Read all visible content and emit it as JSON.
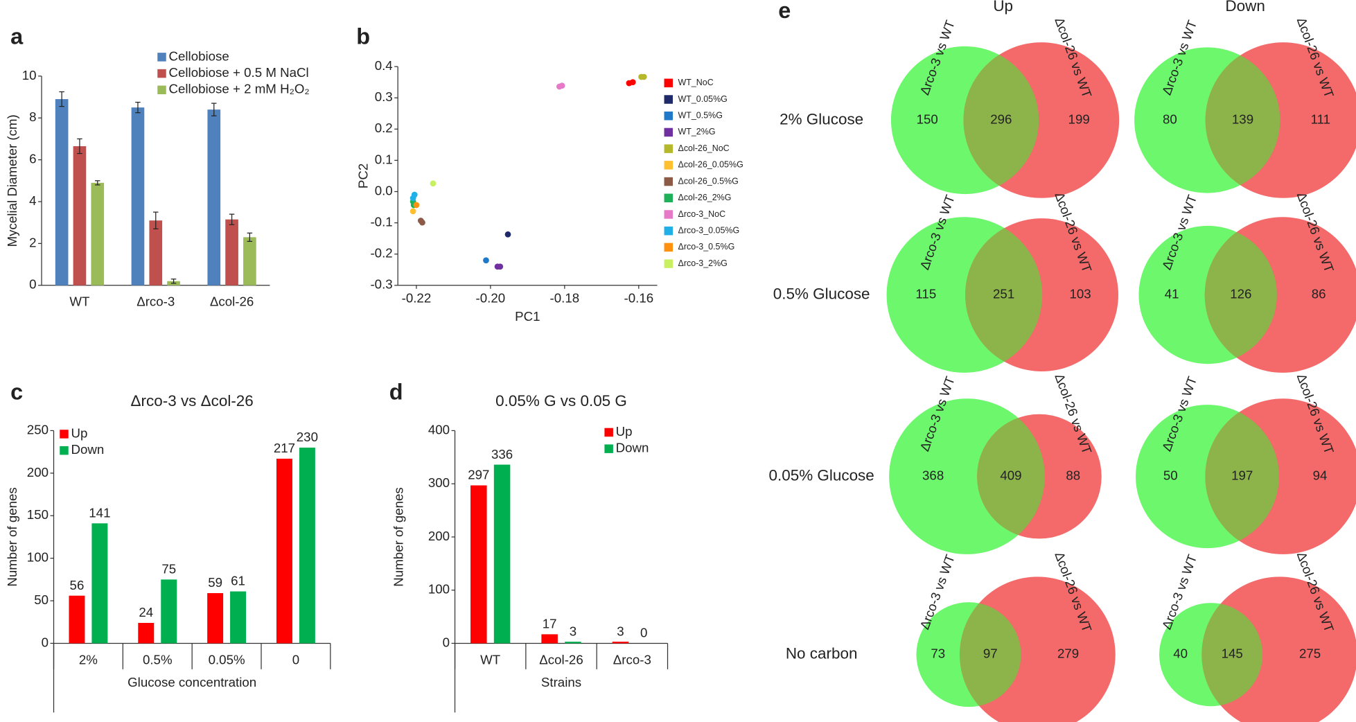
{
  "chart_data": [
    {
      "panel": "a",
      "type": "bar",
      "ylabel": "Mycelial Diameter (cm)",
      "categories": [
        "WT",
        "Δrco-3",
        "Δcol-26"
      ],
      "series": [
        {
          "name": "Cellobiose",
          "color": "#4f81bd",
          "values": [
            8.9,
            8.5,
            8.4
          ],
          "errors": [
            0.35,
            0.25,
            0.3
          ]
        },
        {
          "name": "Cellobiose + 0.5 M NaCl",
          "color": "#c0504d",
          "values": [
            6.65,
            3.1,
            3.15
          ],
          "errors": [
            0.35,
            0.4,
            0.25
          ]
        },
        {
          "name": "Cellobiose + 2 mM H₂O₂",
          "color": "#9bbb59",
          "values": [
            4.9,
            0.2,
            2.3
          ],
          "errors": [
            0.1,
            0.1,
            0.2
          ]
        }
      ],
      "ylim": [
        0,
        10
      ],
      "yticks": [
        0,
        2,
        4,
        6,
        8,
        10
      ],
      "legend": "upper center"
    },
    {
      "panel": "b",
      "type": "scatter",
      "xlabel": "PC1",
      "ylabel": "PC2",
      "series": [
        {
          "name": "WT_NoC",
          "color": "#ff0000",
          "x": [
            -0.1626,
            -0.1616
          ],
          "y": [
            0.347,
            0.35
          ]
        },
        {
          "name": "WT_0.05%G",
          "color": "#1f2a6b",
          "x": [
            -0.1953
          ],
          "y": [
            -0.137
          ]
        },
        {
          "name": "WT_0.5%G",
          "color": "#1f78c8",
          "x": [
            -0.2012
          ],
          "y": [
            -0.22
          ]
        },
        {
          "name": "WT_2%G",
          "color": "#7030a0",
          "x": [
            -0.1981,
            -0.1974
          ],
          "y": [
            -0.24,
            -0.24
          ]
        },
        {
          "name": "Δcol-26_NoC",
          "color": "#b5b82a",
          "x": [
            -0.1593,
            -0.1586
          ],
          "y": [
            0.367,
            0.367
          ]
        },
        {
          "name": "Δcol-26_0.05%G",
          "color": "#ffc030",
          "x": [
            -0.2209
          ],
          "y": [
            -0.063
          ]
        },
        {
          "name": "Δcol-26_0.5%G",
          "color": "#8c5a46",
          "x": [
            -0.2188,
            -0.2184
          ],
          "y": [
            -0.093,
            -0.099
          ]
        },
        {
          "name": "Δcol-26_2%G",
          "color": "#1fb05a",
          "x": [
            -0.2209,
            -0.2207
          ],
          "y": [
            -0.032,
            -0.043
          ]
        },
        {
          "name": "Δrco-3_NoC",
          "color": "#e67ac8",
          "x": [
            -0.1814,
            -0.1807
          ],
          "y": [
            0.336,
            0.339
          ]
        },
        {
          "name": "Δrco-3_0.05%G",
          "color": "#20b0e8",
          "x": [
            -0.2205,
            -0.2209
          ],
          "y": [
            -0.01,
            -0.021
          ]
        },
        {
          "name": "Δrco-3_0.5%G",
          "color": "#ff9010",
          "x": [
            -0.22
          ],
          "y": [
            -0.043
          ]
        },
        {
          "name": "Δrco-3_2%G",
          "color": "#c8f060",
          "x": [
            -0.2155
          ],
          "y": [
            0.026
          ]
        }
      ],
      "xlim": [
        -0.225,
        -0.155
      ],
      "xticks": [
        -0.22,
        {
          "value": -0.2,
          "label": "-0.20"
        },
        -0.18,
        -0.16
      ],
      "ylim": [
        -0.3,
        0.4
      ],
      "yticks": [
        -0.3,
        -0.2,
        -0.1,
        {
          "value": 0,
          "label": "0.0"
        },
        0.1,
        0.2,
        0.3,
        0.4
      ],
      "legend": "right"
    },
    {
      "panel": "c",
      "type": "bar",
      "title": "Δrco-3 vs Δcol-26",
      "xlabel": "Glucose concentration",
      "ylabel": "Number of genes",
      "categories": [
        "2%",
        "0.5%",
        "0.05%",
        "0"
      ],
      "series": [
        {
          "name": "Up",
          "color": "#ff0000",
          "values": [
            56,
            24,
            59,
            217
          ]
        },
        {
          "name": "Down",
          "color": "#00b050",
          "values": [
            141,
            75,
            61,
            230
          ]
        }
      ],
      "ylim": [
        0,
        250
      ],
      "yticks": [
        0,
        50,
        100,
        150,
        200,
        250
      ],
      "legend": "upper left",
      "data_labels": true
    },
    {
      "panel": "d",
      "type": "bar",
      "title": "0.05% G vs 0.05 G",
      "xlabel": "Strains",
      "ylabel": "Number of genes",
      "categories": [
        "WT",
        "Δcol-26",
        "Δrco-3"
      ],
      "series": [
        {
          "name": "Up",
          "color": "#ff0000",
          "values": [
            297,
            17,
            3
          ]
        },
        {
          "name": "Down",
          "color": "#00b050",
          "values": [
            336,
            3,
            0
          ]
        }
      ],
      "ylim": [
        0,
        400
      ],
      "yticks": [
        0,
        100,
        200,
        300,
        400
      ],
      "legend": "upper right",
      "data_labels": true
    },
    {
      "panel": "e",
      "type": "venn",
      "columns": [
        "Up",
        "Down"
      ],
      "set_labels": [
        "Δrco-3 vs WT",
        "Δcol-26 vs WT"
      ],
      "colors": [
        "#6cf76c",
        "#f46a6a",
        "#8db34b"
      ],
      "rows": [
        {
          "label": "2% Glucose",
          "venns": [
            [
              150,
              296,
              199
            ],
            [
              80,
              139,
              111
            ]
          ]
        },
        {
          "label": "0.5% Glucose",
          "venns": [
            [
              115,
              251,
              103
            ],
            [
              41,
              126,
              86
            ]
          ]
        },
        {
          "label": "0.05% Glucose",
          "venns": [
            [
              368,
              409,
              88
            ],
            [
              50,
              197,
              94
            ]
          ]
        },
        {
          "label": "No carbon",
          "venns": [
            [
              73,
              97,
              279
            ],
            [
              40,
              145,
              275
            ]
          ]
        }
      ]
    }
  ]
}
